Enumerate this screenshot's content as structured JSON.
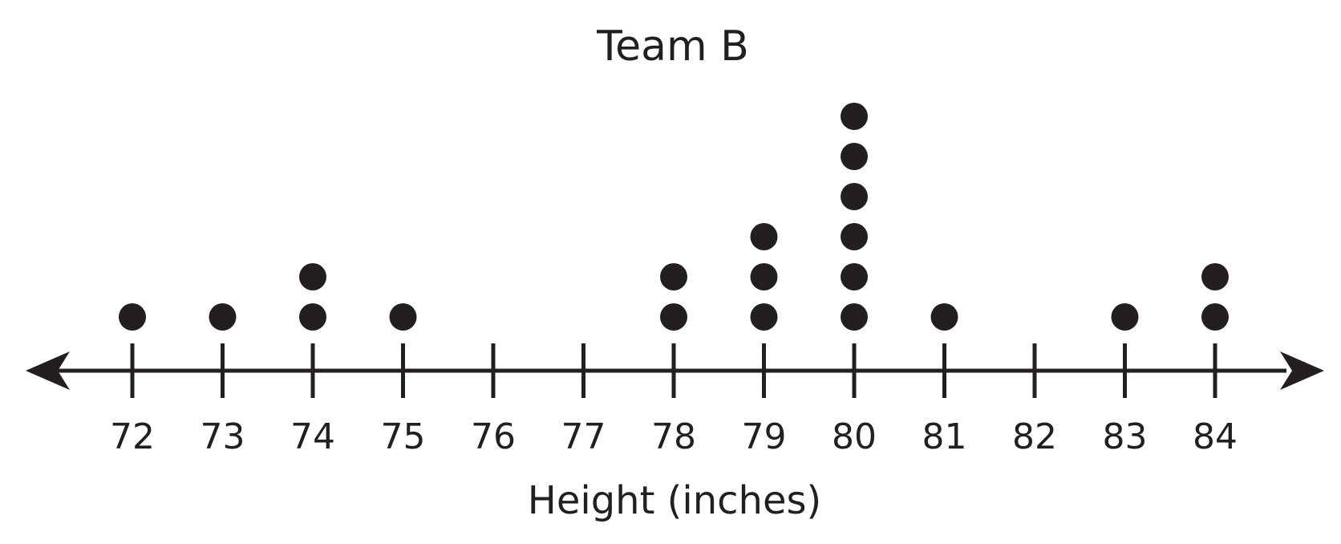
{
  "chart_data": {
    "type": "dot_plot",
    "title": "Team B",
    "xlabel": "Height (inches)",
    "ylabel": "",
    "x_ticks": [
      72,
      73,
      74,
      75,
      76,
      77,
      78,
      79,
      80,
      81,
      82,
      83,
      84
    ],
    "points": [
      {
        "x": 72,
        "count": 1
      },
      {
        "x": 73,
        "count": 1
      },
      {
        "x": 74,
        "count": 2
      },
      {
        "x": 75,
        "count": 1
      },
      {
        "x": 76,
        "count": 0
      },
      {
        "x": 77,
        "count": 0
      },
      {
        "x": 78,
        "count": 2
      },
      {
        "x": 79,
        "count": 3
      },
      {
        "x": 80,
        "count": 6
      },
      {
        "x": 81,
        "count": 1
      },
      {
        "x": 82,
        "count": 0
      },
      {
        "x": 83,
        "count": 1
      },
      {
        "x": 84,
        "count": 2
      }
    ],
    "grid": false,
    "legend": "none",
    "colors": {
      "ink": "#231f20",
      "background": "#ffffff"
    }
  }
}
